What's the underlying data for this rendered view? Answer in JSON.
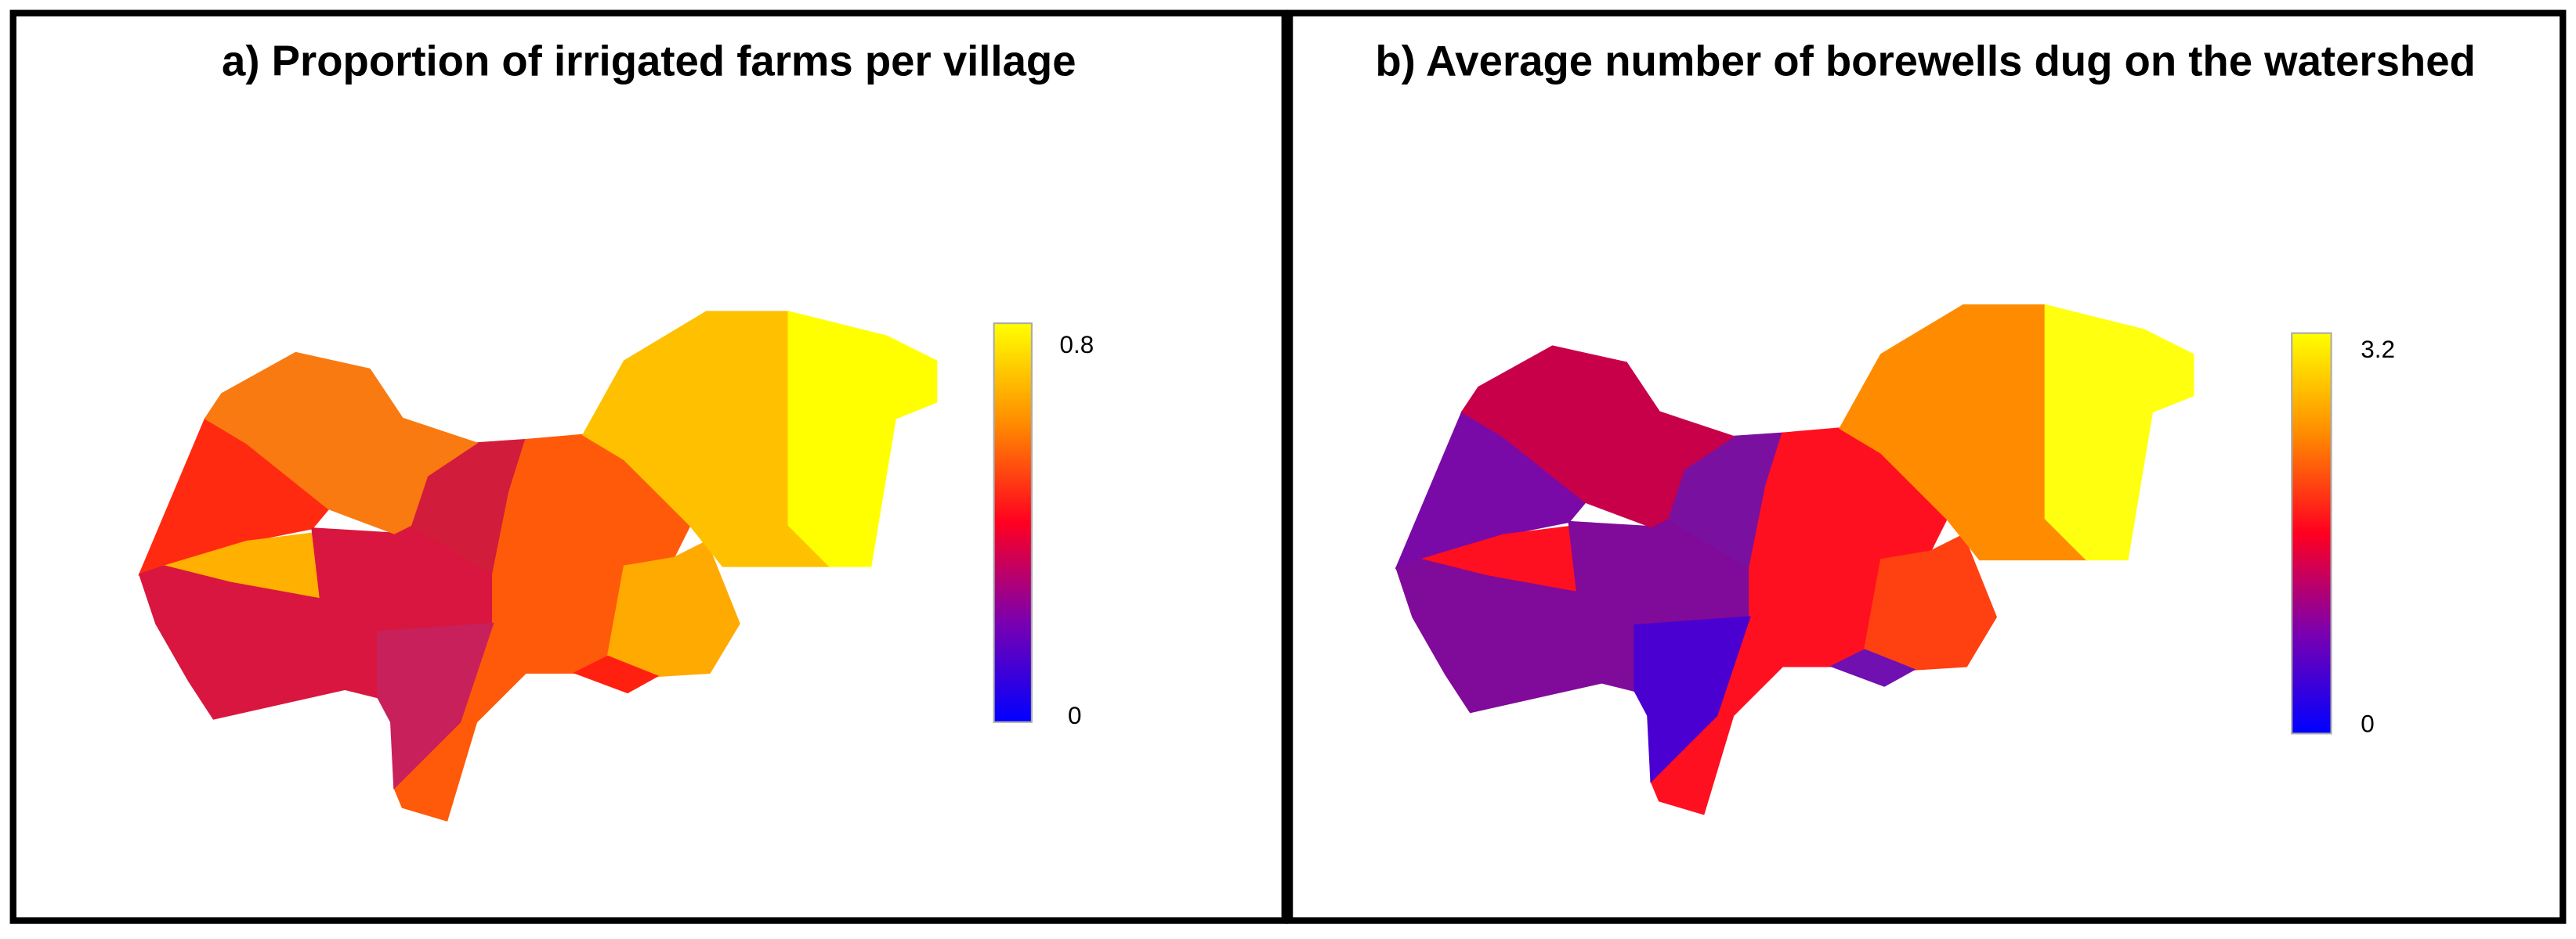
{
  "panels": [
    {
      "title": "a) Proportion of irrigated farms per village",
      "colorbar": {
        "max": 0.8,
        "min": 0
      }
    },
    {
      "title": "b) Average number of borewells dug on the watershed",
      "colorbar": {
        "max": 3.2,
        "min": 0
      }
    }
  ]
}
